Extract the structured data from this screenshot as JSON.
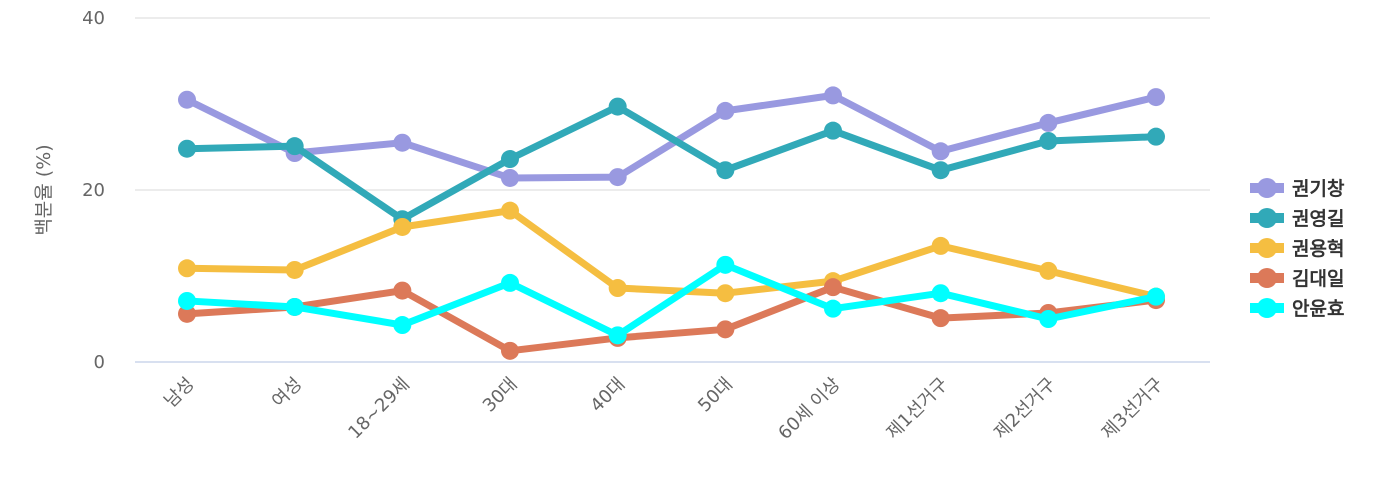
{
  "chart_data": {
    "type": "line",
    "title": "",
    "xlabel": "",
    "ylabel": "백분율 (%)",
    "ylim": [
      0,
      40
    ],
    "yticks": [
      0,
      20,
      40
    ],
    "grid": true,
    "legend_position": "right",
    "categories": [
      "남성",
      "여성",
      "18~29세",
      "30대",
      "40대",
      "50대",
      "60세 이상",
      "제1선거구",
      "제2선거구",
      "제3선거구"
    ],
    "series": [
      {
        "name": "권기창",
        "color": "#9999e0",
        "values": [
          30.5,
          24.3,
          25.5,
          21.4,
          21.5,
          29.2,
          31.0,
          24.5,
          27.8,
          30.8
        ]
      },
      {
        "name": "권영길",
        "color": "#31a9b8",
        "values": [
          24.8,
          25.1,
          16.6,
          23.6,
          29.7,
          22.3,
          26.9,
          22.3,
          25.7,
          26.2
        ]
      },
      {
        "name": "권용혁",
        "color": "#f5be41",
        "values": [
          10.9,
          10.7,
          15.7,
          17.6,
          8.6,
          8.0,
          9.4,
          13.5,
          10.6,
          7.6
        ]
      },
      {
        "name": "김대일",
        "color": "#dc7959",
        "values": [
          5.6,
          6.4,
          8.3,
          1.3,
          2.8,
          3.8,
          8.7,
          5.1,
          5.7,
          7.2
        ]
      },
      {
        "name": "안윤효",
        "color": "#00ffff",
        "values": [
          7.1,
          6.4,
          4.3,
          9.2,
          3.1,
          11.3,
          6.2,
          8.0,
          5.0,
          7.6
        ]
      }
    ]
  }
}
